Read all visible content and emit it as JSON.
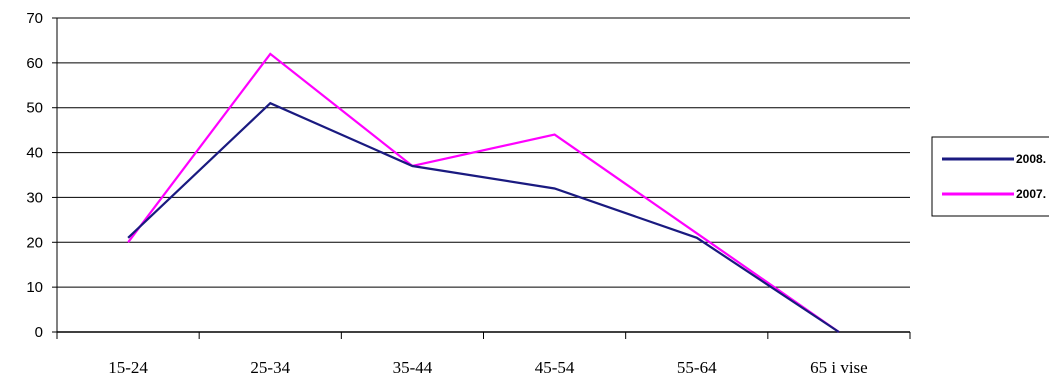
{
  "chart_data": {
    "type": "line",
    "categories": [
      "15-24",
      "25-34",
      "35-44",
      "45-54",
      "55-64",
      "65 i vise"
    ],
    "series": [
      {
        "name": "2008.",
        "color": "#1a1a80",
        "values": [
          21,
          51,
          37,
          32,
          21,
          0
        ]
      },
      {
        "name": "2007.",
        "color": "#ff00ff",
        "values": [
          20,
          62,
          37,
          44,
          22,
          0
        ]
      }
    ],
    "ylim": [
      0,
      70
    ],
    "yticks": [
      0,
      10,
      20,
      30,
      40,
      50,
      60,
      70
    ],
    "grid": true,
    "legend_position": "right"
  }
}
